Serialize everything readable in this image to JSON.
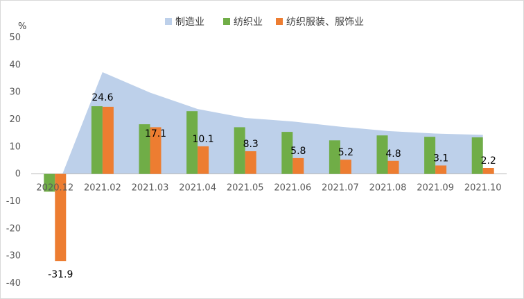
{
  "chart_data": {
    "type": "bar",
    "y_unit": "%",
    "categories": [
      "2020.12",
      "2021.02",
      "2021.03",
      "2021.04",
      "2021.05",
      "2021.06",
      "2021.07",
      "2021.08",
      "2021.09",
      "2021.10"
    ],
    "ylim": [
      -40,
      50
    ],
    "yticks": [
      -40,
      -30,
      -20,
      -10,
      0,
      10,
      20,
      30,
      40,
      50
    ],
    "grid": false,
    "legend_position": "top",
    "series": [
      {
        "name": "制造业",
        "type": "area",
        "color": "#bdd0ea",
        "values": [
          -7.0,
          37.3,
          29.8,
          23.8,
          20.5,
          19.2,
          17.3,
          15.7,
          14.8,
          14.3
        ]
      },
      {
        "name": "纺织业",
        "type": "bar",
        "color": "#70ad47",
        "values": [
          -6.5,
          24.8,
          18.2,
          23.0,
          17.1,
          15.4,
          12.3,
          14.1,
          13.6,
          13.4
        ]
      },
      {
        "name": "纺织服装、服饰业",
        "type": "bar",
        "color": "#ed7d31",
        "values": [
          -31.9,
          24.6,
          17.1,
          10.1,
          8.3,
          5.8,
          5.2,
          4.8,
          3.1,
          2.2
        ]
      }
    ],
    "data_labels": [
      "-31.9",
      "24.6",
      "17.1",
      "10.1",
      "8.3",
      "5.8",
      "5.2",
      "4.8",
      "3.1",
      "2.2"
    ]
  }
}
